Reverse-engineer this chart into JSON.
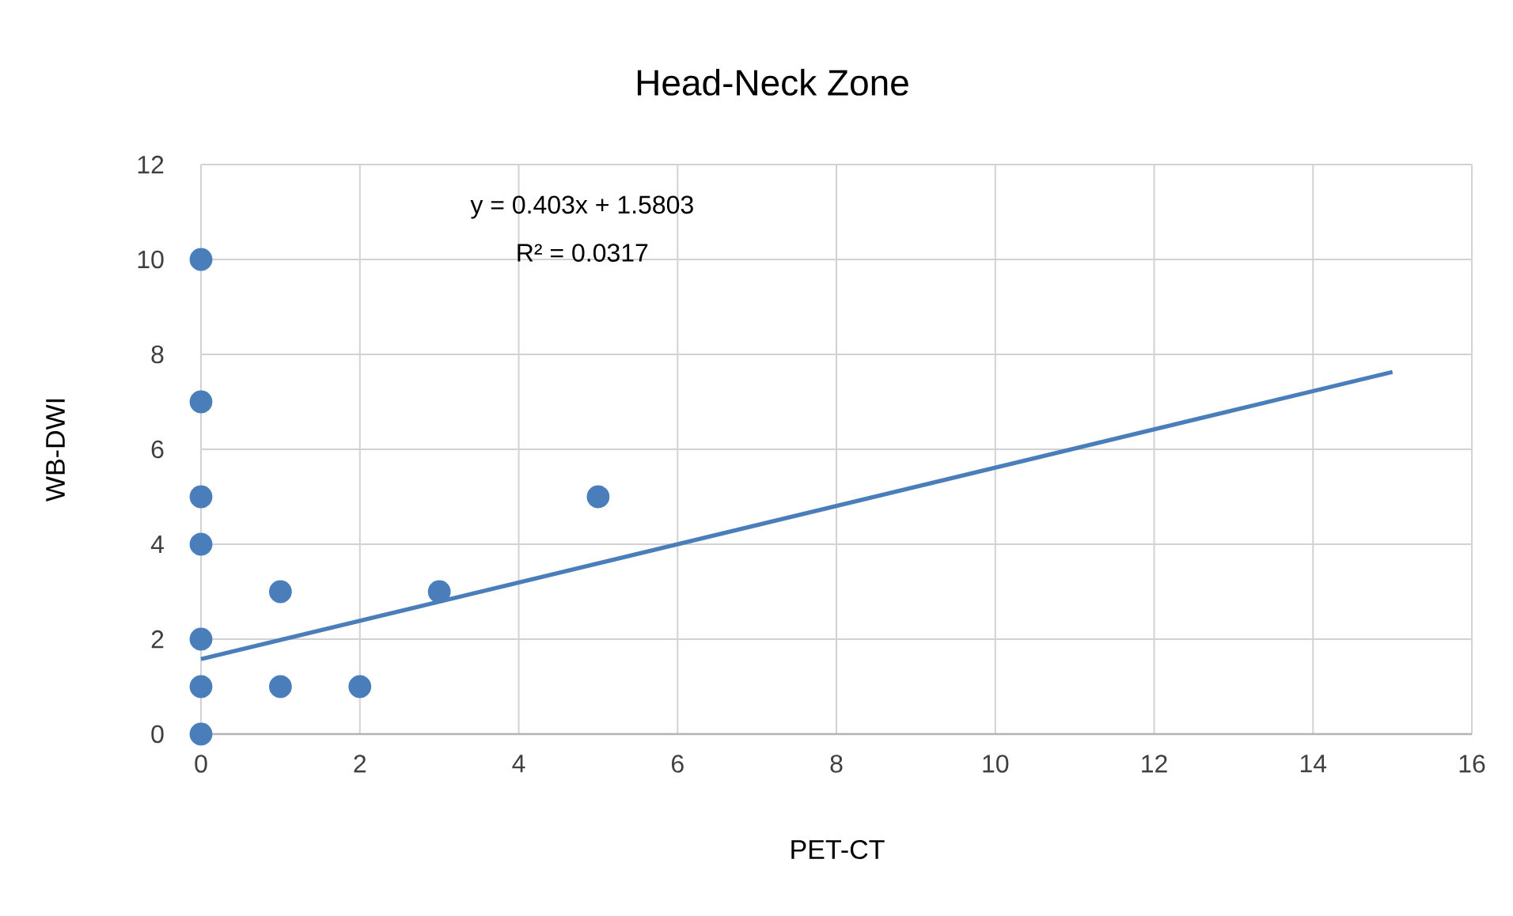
{
  "chart_data": {
    "type": "scatter",
    "title": "Head-Neck Zone",
    "xlabel": "PET-CT",
    "ylabel": "WB-DWI",
    "annotations": [
      "y = 0.403x + 1.5803",
      "R² = 0.0317"
    ],
    "series": [
      {
        "color": "#4a7ebb",
        "marker": "circle",
        "x": [
          0,
          0,
          0,
          0,
          0,
          0,
          0,
          1,
          1,
          2,
          3,
          5
        ],
        "values": [
          10,
          7,
          5,
          4,
          2,
          1,
          0,
          3,
          1,
          1,
          3,
          5
        ]
      },
      {
        "type": "line",
        "color": "#4a7ebb",
        "marker": "none",
        "line_style": "solid",
        "x": [
          0,
          15
        ],
        "values": [
          1.58,
          7.63
        ]
      }
    ],
    "xlim": [
      0,
      16
    ],
    "ylim": [
      0,
      12
    ],
    "xticks": [
      0,
      2,
      4,
      6,
      8,
      10,
      12,
      14,
      16
    ],
    "yticks": [
      0,
      2,
      4,
      6,
      8,
      10,
      12
    ],
    "grid": true
  }
}
